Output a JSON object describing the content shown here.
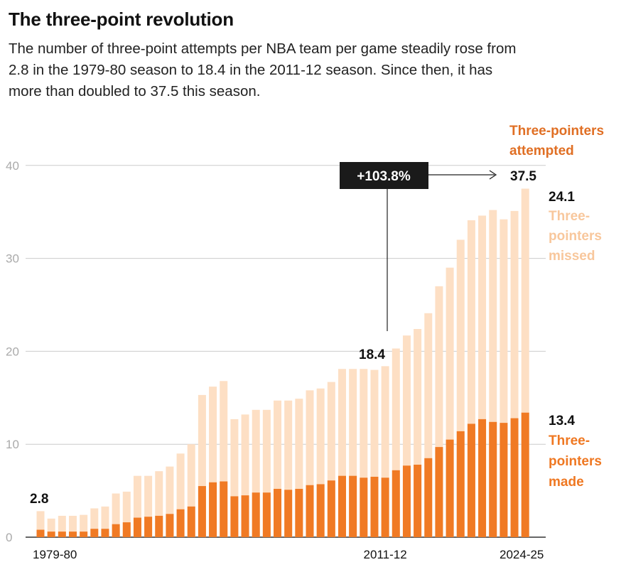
{
  "header": {
    "title": "The three-point revolution",
    "subtitle": "The number of three-point attempts per NBA team per game steadily rose from 2.8 in the 1979-80 season to 18.4 in the 2011-12 season. Since then, it has more than doubled to 37.5 this season."
  },
  "colors": {
    "attempted": "#fddfc4",
    "made": "#f07a24",
    "attempted_label": "#e06f24",
    "missed_label": "#f8c79c",
    "made_label": "#ef7822",
    "grid": "#cccccc",
    "badge_bg": "#1a1a1a"
  },
  "chart_data": {
    "type": "bar",
    "stacked": true,
    "categories": [
      "1979-80",
      "1980-81",
      "1981-82",
      "1982-83",
      "1983-84",
      "1984-85",
      "1985-86",
      "1986-87",
      "1987-88",
      "1988-89",
      "1989-90",
      "1990-91",
      "1991-92",
      "1992-93",
      "1993-94",
      "1994-95",
      "1995-96",
      "1996-97",
      "1997-98",
      "1998-99",
      "1999-00",
      "2000-01",
      "2001-02",
      "2002-03",
      "2003-04",
      "2004-05",
      "2005-06",
      "2006-07",
      "2007-08",
      "2008-09",
      "2009-10",
      "2010-11",
      "2011-12",
      "2012-13",
      "2013-14",
      "2014-15",
      "2015-16",
      "2016-17",
      "2017-18",
      "2018-19",
      "2019-20",
      "2020-21",
      "2021-22",
      "2022-23",
      "2023-24",
      "2024-25"
    ],
    "series": [
      {
        "name": "Three-pointers made",
        "values": [
          0.8,
          0.6,
          0.6,
          0.6,
          0.6,
          0.9,
          0.9,
          1.4,
          1.6,
          2.1,
          2.2,
          2.3,
          2.5,
          3.0,
          3.3,
          5.5,
          5.9,
          6.0,
          4.4,
          4.5,
          4.8,
          4.8,
          5.2,
          5.1,
          5.2,
          5.6,
          5.7,
          6.1,
          6.6,
          6.6,
          6.4,
          6.5,
          6.4,
          7.2,
          7.7,
          7.8,
          8.5,
          9.7,
          10.5,
          11.4,
          12.2,
          12.7,
          12.4,
          12.3,
          12.8,
          13.4
        ]
      },
      {
        "name": "Three-pointers missed",
        "values": [
          2.0,
          1.4,
          1.7,
          1.7,
          1.8,
          2.2,
          2.4,
          3.3,
          3.3,
          4.5,
          4.4,
          4.8,
          5.1,
          6.0,
          6.7,
          9.8,
          10.3,
          10.8,
          8.3,
          8.7,
          8.9,
          8.9,
          9.5,
          9.6,
          9.7,
          10.2,
          10.3,
          10.6,
          11.5,
          11.5,
          11.7,
          11.5,
          12.0,
          13.1,
          14.0,
          14.6,
          15.6,
          17.3,
          18.5,
          20.6,
          21.9,
          21.9,
          22.8,
          21.9,
          22.3,
          24.1
        ]
      }
    ],
    "totals": [
      2.8,
      2.0,
      2.3,
      2.3,
      2.4,
      3.1,
      3.3,
      4.7,
      4.9,
      6.6,
      6.6,
      7.1,
      7.6,
      9.0,
      10.0,
      15.3,
      16.2,
      16.8,
      12.7,
      13.2,
      13.7,
      13.7,
      14.7,
      14.7,
      14.9,
      15.8,
      16.0,
      16.7,
      18.1,
      18.1,
      18.1,
      18.0,
      18.4,
      20.3,
      21.7,
      22.4,
      24.1,
      27.0,
      29.0,
      32.0,
      34.1,
      34.6,
      35.2,
      34.2,
      35.1,
      37.5
    ],
    "ylim": [
      0,
      40
    ],
    "yticks": [
      0,
      10,
      20,
      30,
      40
    ],
    "ytick_labels": [
      "0",
      "10",
      "20",
      "30",
      "40"
    ],
    "xtick_labels": [
      {
        "index": 0,
        "label": "1979-80"
      },
      {
        "index": 32,
        "label": "2011-12"
      },
      {
        "index": 45,
        "label": "2024-25"
      }
    ],
    "annotations": {
      "first_value": "2.8",
      "mid_value": "18.4",
      "last_total": "37.5",
      "last_missed": "24.1",
      "last_made": "13.4",
      "change_badge": "+103.8%"
    },
    "legend": {
      "attempted": [
        "Three-pointers",
        "attempted"
      ],
      "missed": [
        "Three-",
        "pointers",
        "missed"
      ],
      "made": [
        "Three-",
        "pointers",
        "made"
      ]
    },
    "grid": true,
    "legend_placement": "right, inline labels"
  }
}
